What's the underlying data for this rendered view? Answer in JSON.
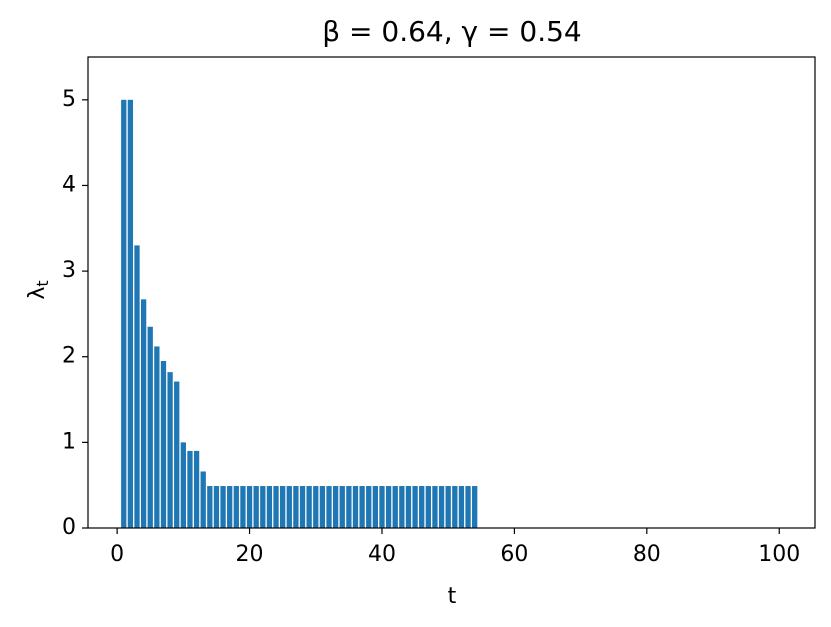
{
  "chart_data": {
    "type": "bar",
    "title": "β = 0.64, γ = 0.54",
    "xlabel": "t",
    "ylabel": "λ",
    "ylabel_subscript": "t",
    "color": "#1f77b4",
    "x": [
      1,
      2,
      3,
      4,
      5,
      6,
      7,
      8,
      9,
      10,
      11,
      12,
      13,
      14,
      15,
      16,
      17,
      18,
      19,
      20,
      21,
      22,
      23,
      24,
      25,
      26,
      27,
      28,
      29,
      30,
      31,
      32,
      33,
      34,
      35,
      36,
      37,
      38,
      39,
      40,
      41,
      42,
      43,
      44,
      45,
      46,
      47,
      48,
      49,
      50,
      51,
      52,
      53,
      54
    ],
    "values": [
      5,
      5,
      3.3,
      2.67,
      2.35,
      2.12,
      1.95,
      1.82,
      1.71,
      1.0,
      0.9,
      0.9,
      0.66,
      0.49,
      0.49,
      0.49,
      0.49,
      0.49,
      0.49,
      0.49,
      0.49,
      0.49,
      0.49,
      0.49,
      0.49,
      0.49,
      0.49,
      0.49,
      0.49,
      0.49,
      0.49,
      0.49,
      0.49,
      0.49,
      0.49,
      0.49,
      0.49,
      0.49,
      0.49,
      0.49,
      0.49,
      0.49,
      0.49,
      0.49,
      0.49,
      0.49,
      0.49,
      0.49,
      0.49,
      0.49,
      0.49,
      0.49,
      0.49,
      0.49
    ],
    "xlim": [
      -4.4,
      105.4
    ],
    "xticks": [
      0,
      20,
      40,
      60,
      80,
      100
    ],
    "ylim": [
      0,
      5.5
    ],
    "yticks": [
      0,
      1,
      2,
      3,
      4,
      5
    ],
    "grid": false
  }
}
